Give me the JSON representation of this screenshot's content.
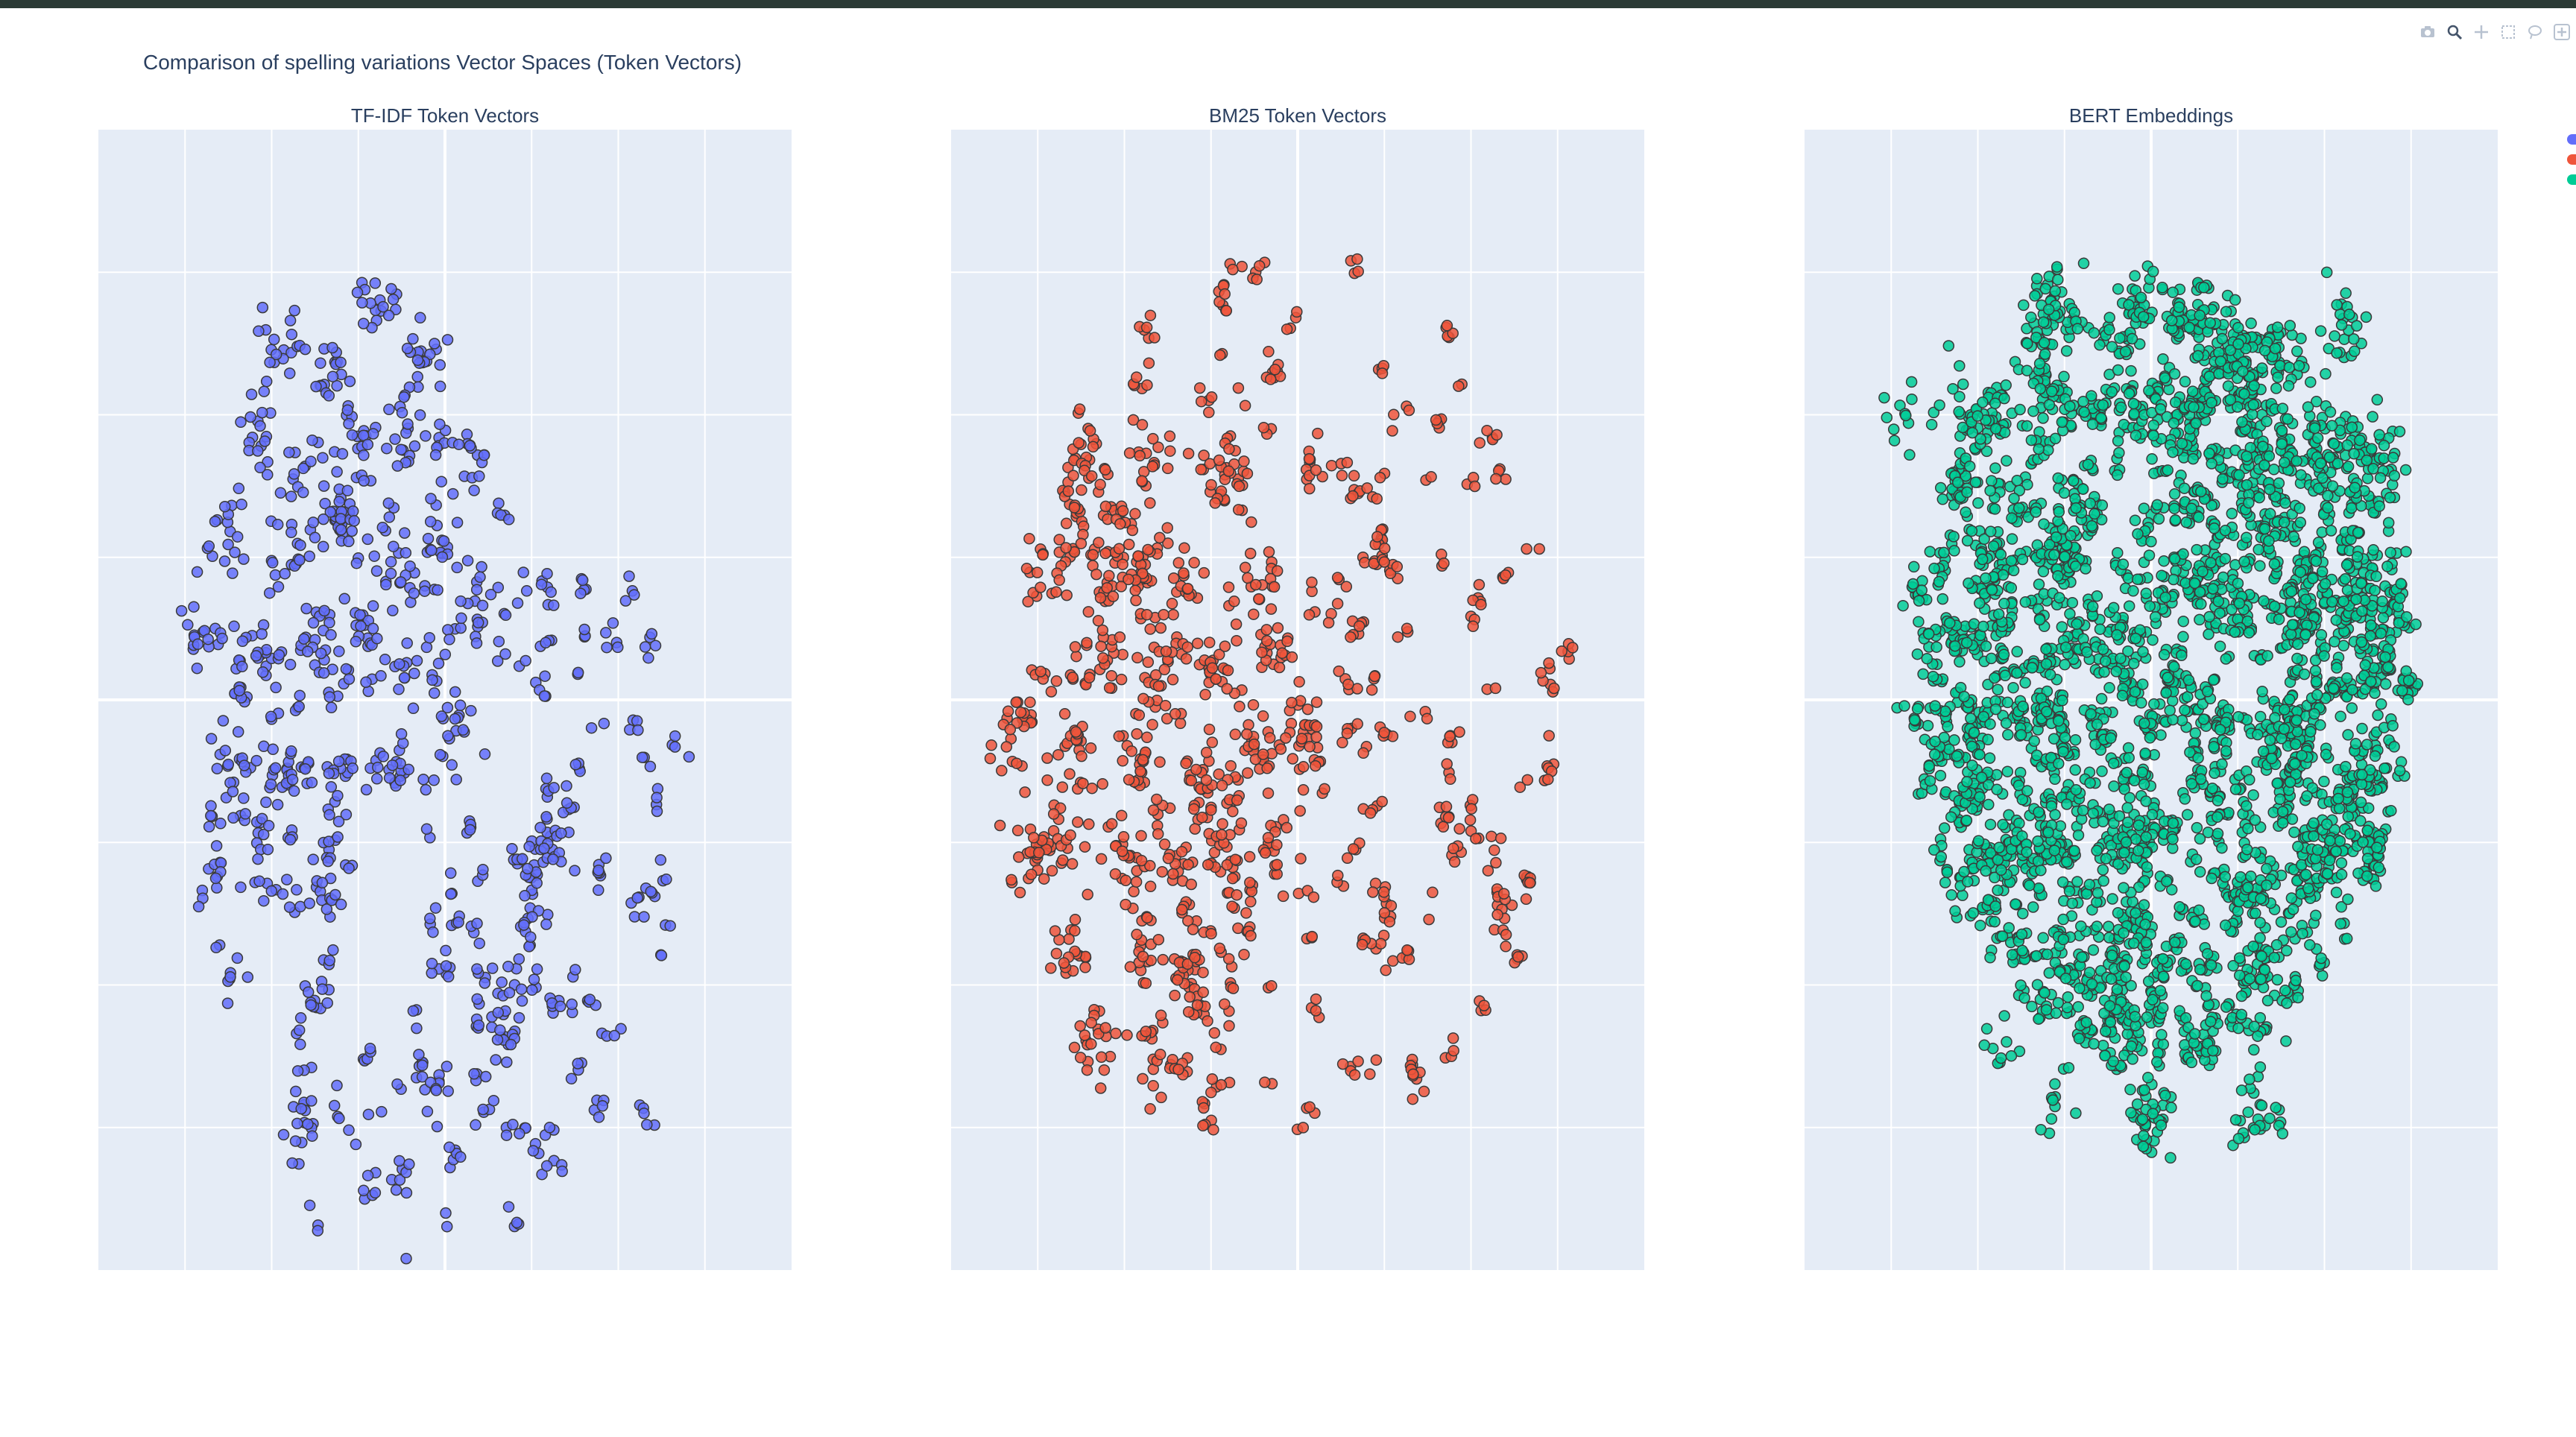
{
  "title": "Comparison of spelling variations Vector Spaces (Token Vectors)",
  "modebar": {
    "buttons": [
      {
        "icon": "camera-icon",
        "label": "Download plot as a png"
      },
      {
        "icon": "zoom-icon",
        "label": "Zoom"
      },
      {
        "icon": "pan-icon",
        "label": "Pan"
      },
      {
        "icon": "box-select-icon",
        "label": "Box Select"
      },
      {
        "icon": "lasso-select-icon",
        "label": "Lasso Select"
      },
      {
        "icon": "zoom-in-icon",
        "label": "Zoom in"
      }
    ]
  },
  "colors": {
    "plot_background": "#e5ecf6",
    "grid": "#ffffff",
    "title_text": "#2a3f5f",
    "marker_outline": "#3a3a3a"
  },
  "chart_data": [
    {
      "type": "scatter",
      "title": "TF-IDF Token Vectors",
      "color": "#636efa",
      "grid": true,
      "legend": "right",
      "description_kind": "t-SNE projection, numerous tight clusters forming an oval shape; dense blobs upper-left, sparser small clusters lower-right",
      "clusters": [
        {
          "x": -9.5,
          "y": 12.5,
          "n": 18
        },
        {
          "x": -6.5,
          "y": 11.5,
          "n": 20
        },
        {
          "x": -4.0,
          "y": 14.0,
          "n": 18
        },
        {
          "x": -1.0,
          "y": 12.0,
          "n": 20
        },
        {
          "x": -11.0,
          "y": 9.5,
          "n": 18
        },
        {
          "x": -8.0,
          "y": 8.0,
          "n": 20
        },
        {
          "x": -5.0,
          "y": 9.0,
          "n": 20
        },
        {
          "x": -2.5,
          "y": 9.5,
          "n": 18
        },
        {
          "x": 1.0,
          "y": 8.5,
          "n": 18
        },
        {
          "x": -12.5,
          "y": 6.0,
          "n": 18
        },
        {
          "x": -9.0,
          "y": 5.0,
          "n": 18
        },
        {
          "x": -6.0,
          "y": 6.0,
          "n": 20
        },
        {
          "x": -3.0,
          "y": 5.5,
          "n": 18
        },
        {
          "x": -0.5,
          "y": 5.0,
          "n": 20
        },
        {
          "x": 2.0,
          "y": 3.5,
          "n": 18
        },
        {
          "x": -14.0,
          "y": 2.5,
          "n": 18
        },
        {
          "x": -10.5,
          "y": 1.5,
          "n": 20
        },
        {
          "x": -7.5,
          "y": 2.0,
          "n": 20
        },
        {
          "x": -4.5,
          "y": 2.5,
          "n": 20
        },
        {
          "x": -1.5,
          "y": 1.0,
          "n": 18
        },
        {
          "x": 0.5,
          "y": -1.0,
          "n": 18
        },
        {
          "x": -12.0,
          "y": -2.0,
          "n": 18
        },
        {
          "x": -9.0,
          "y": -2.5,
          "n": 18
        },
        {
          "x": -6.0,
          "y": -3.0,
          "n": 18
        },
        {
          "x": -3.0,
          "y": -2.5,
          "n": 18
        },
        {
          "x": -10.0,
          "y": -6.0,
          "n": 18
        },
        {
          "x": -7.0,
          "y": -6.5,
          "n": 16
        },
        {
          "x": 6.0,
          "y": -5.0,
          "n": 26
        },
        {
          "x": 3.5,
          "y": -11.0,
          "n": 24
        }
      ],
      "scatter_region": {
        "x_center": 0.0,
        "y_center": -6.0,
        "x_radius": 15.0,
        "y_radius": 16.0,
        "n_small": 150
      }
    },
    {
      "type": "scatter",
      "title": "BM25 Token Vectors",
      "color": "#ef553b",
      "grid": true,
      "legend": "right",
      "description_kind": "t-SNE projection, larger clusters in a grid on the left, many small clusters spread in an oval",
      "clusters": [
        {
          "x": -12.0,
          "y": 8.0,
          "n": 18
        },
        {
          "x": -8.5,
          "y": 8.5,
          "n": 18
        },
        {
          "x": -4.5,
          "y": 7.5,
          "n": 18
        },
        {
          "x": -14.5,
          "y": 4.5,
          "n": 18
        },
        {
          "x": -10.0,
          "y": 5.0,
          "n": 20
        },
        {
          "x": -6.5,
          "y": 4.0,
          "n": 20
        },
        {
          "x": -2.5,
          "y": 4.0,
          "n": 18
        },
        {
          "x": -12.0,
          "y": 1.5,
          "n": 20
        },
        {
          "x": -8.0,
          "y": 1.0,
          "n": 20
        },
        {
          "x": -4.5,
          "y": 1.0,
          "n": 18
        },
        {
          "x": -1.0,
          "y": 1.5,
          "n": 18
        },
        {
          "x": -16.5,
          "y": -1.5,
          "n": 18
        },
        {
          "x": -13.0,
          "y": -2.0,
          "n": 20
        },
        {
          "x": -9.0,
          "y": -2.0,
          "n": 18
        },
        {
          "x": -5.5,
          "y": -2.5,
          "n": 20
        },
        {
          "x": -2.0,
          "y": -2.0,
          "n": 20
        },
        {
          "x": 0.5,
          "y": -1.5,
          "n": 18
        },
        {
          "x": -13.0,
          "y": -5.0,
          "n": 20
        },
        {
          "x": -10.0,
          "y": -5.5,
          "n": 18
        },
        {
          "x": -7.0,
          "y": -5.5,
          "n": 18
        },
        {
          "x": -4.5,
          "y": -5.5,
          "n": 20
        },
        {
          "x": -1.5,
          "y": -5.0,
          "n": 18
        },
        {
          "x": -15.5,
          "y": -5.5,
          "n": 18
        },
        {
          "x": -13.0,
          "y": -9.0,
          "n": 18
        },
        {
          "x": -9.0,
          "y": -8.5,
          "n": 18
        },
        {
          "x": -6.0,
          "y": -9.0,
          "n": 18
        },
        {
          "x": -11.5,
          "y": -12.5,
          "n": 18
        },
        {
          "x": -8.0,
          "y": -12.5,
          "n": 18
        }
      ],
      "scatter_region": {
        "x_center": -0.5,
        "y_center": 0.0,
        "x_radius": 17.0,
        "y_radius": 16.5,
        "n_small": 200
      }
    },
    {
      "type": "scatter",
      "title": "BERT Embeddings",
      "color": "#00cc96",
      "grid": true,
      "legend": "right",
      "description_kind": "t-SNE projection, dense irregular mass with small satellite clusters",
      "clusters": [
        {
          "x": -6.0,
          "y": 14.0,
          "n": 30
        },
        {
          "x": 5.0,
          "y": 12.0,
          "n": 35
        },
        {
          "x": 11.0,
          "y": 13.0,
          "n": 25
        },
        {
          "x": 13.5,
          "y": 8.5,
          "n": 25
        },
        {
          "x": 6.0,
          "y": 8.0,
          "n": 40
        },
        {
          "x": 3.0,
          "y": 4.0,
          "n": 30
        },
        {
          "x": 8.5,
          "y": 3.0,
          "n": 40
        },
        {
          "x": 12.0,
          "y": 4.0,
          "n": 25
        },
        {
          "x": 7.5,
          "y": -1.5,
          "n": 45
        },
        {
          "x": 12.0,
          "y": -2.5,
          "n": 35
        },
        {
          "x": 10.0,
          "y": -6.0,
          "n": 25
        },
        {
          "x": -10.0,
          "y": -2.5,
          "n": 22
        },
        {
          "x": -6.0,
          "y": -5.0,
          "n": 20
        },
        {
          "x": -2.0,
          "y": -5.0,
          "n": 25
        },
        {
          "x": -1.0,
          "y": -8.5,
          "n": 25
        },
        {
          "x": 0.0,
          "y": -14.5,
          "n": 40
        },
        {
          "x": 6.0,
          "y": -14.5,
          "n": 28
        },
        {
          "x": -14.0,
          "y": 9.5,
          "n": 12
        },
        {
          "x": -11.0,
          "y": 10.5,
          "n": 12
        },
        {
          "x": -13.0,
          "y": 4.0,
          "n": 12
        },
        {
          "x": -9.0,
          "y": -12.0,
          "n": 10
        },
        {
          "x": -5.5,
          "y": -14.0,
          "n": 12
        },
        {
          "x": -1.5,
          "y": 1.5,
          "n": 25
        },
        {
          "x": -5.0,
          "y": 6.0,
          "n": 25
        },
        {
          "x": 0.5,
          "y": 9.5,
          "n": 20
        }
      ],
      "scatter_region": {
        "x_center": 0.5,
        "y_center": 1.0,
        "x_radius": 15.5,
        "y_radius": 14.5,
        "n_small": 900
      }
    }
  ],
  "legend": {
    "entries": [
      {
        "color": "#636efa"
      },
      {
        "color": "#ef553b"
      },
      {
        "color": "#00cc96"
      }
    ]
  }
}
